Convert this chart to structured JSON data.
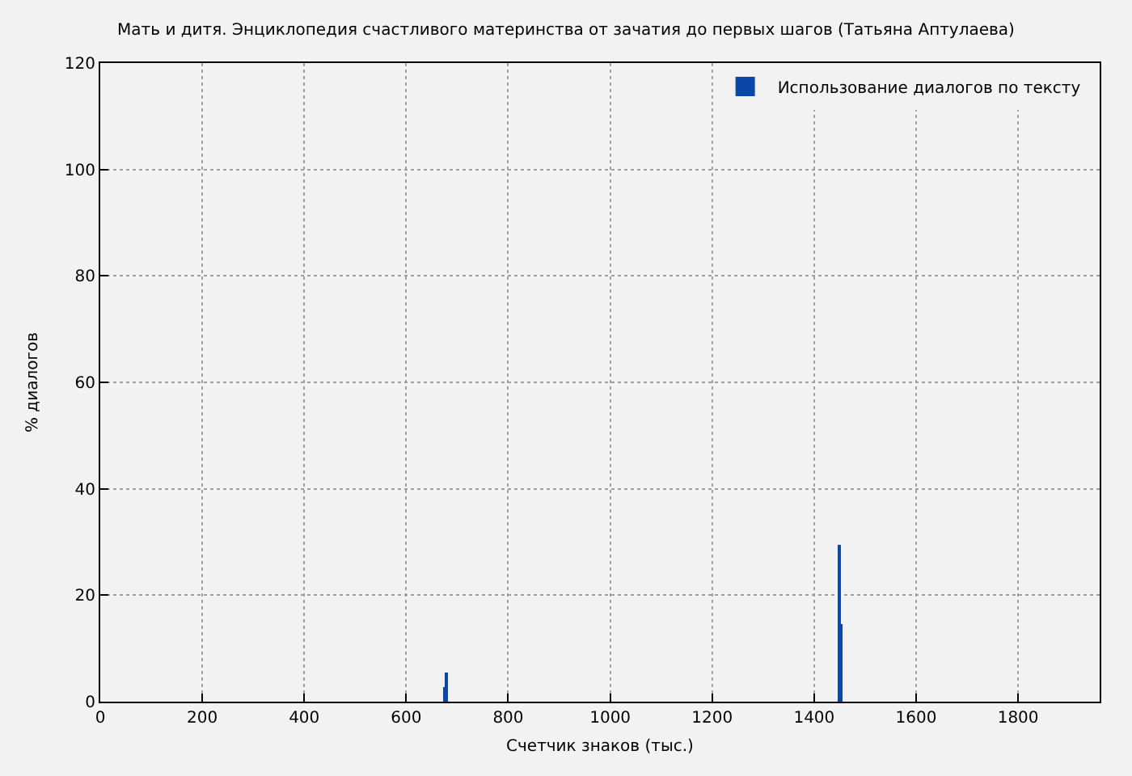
{
  "chart_data": {
    "type": "bar",
    "title": "Мать и дитя. Энциклопедия счастливого материнства от зачатия до первых шагов (Татьяна Аптулаева)",
    "xlabel": "Счетчик знаков (тыс.)",
    "ylabel": "% диалогов",
    "series": [
      {
        "name": "Использование диалогов по тексту",
        "color": "#0b47a8",
        "x": [
          676,
          679,
          1449,
          1452
        ],
        "values": [
          2.8,
          5.5,
          29.6,
          14.6
        ]
      }
    ],
    "xlim": [
      0,
      1960
    ],
    "xticks": [
      0,
      200,
      400,
      600,
      800,
      1000,
      1200,
      1400,
      1600,
      1800
    ],
    "ylim": [
      0,
      120
    ],
    "yticks": [
      0,
      20,
      40,
      60,
      80,
      100,
      120
    ],
    "grid": true,
    "legend": "top right"
  }
}
